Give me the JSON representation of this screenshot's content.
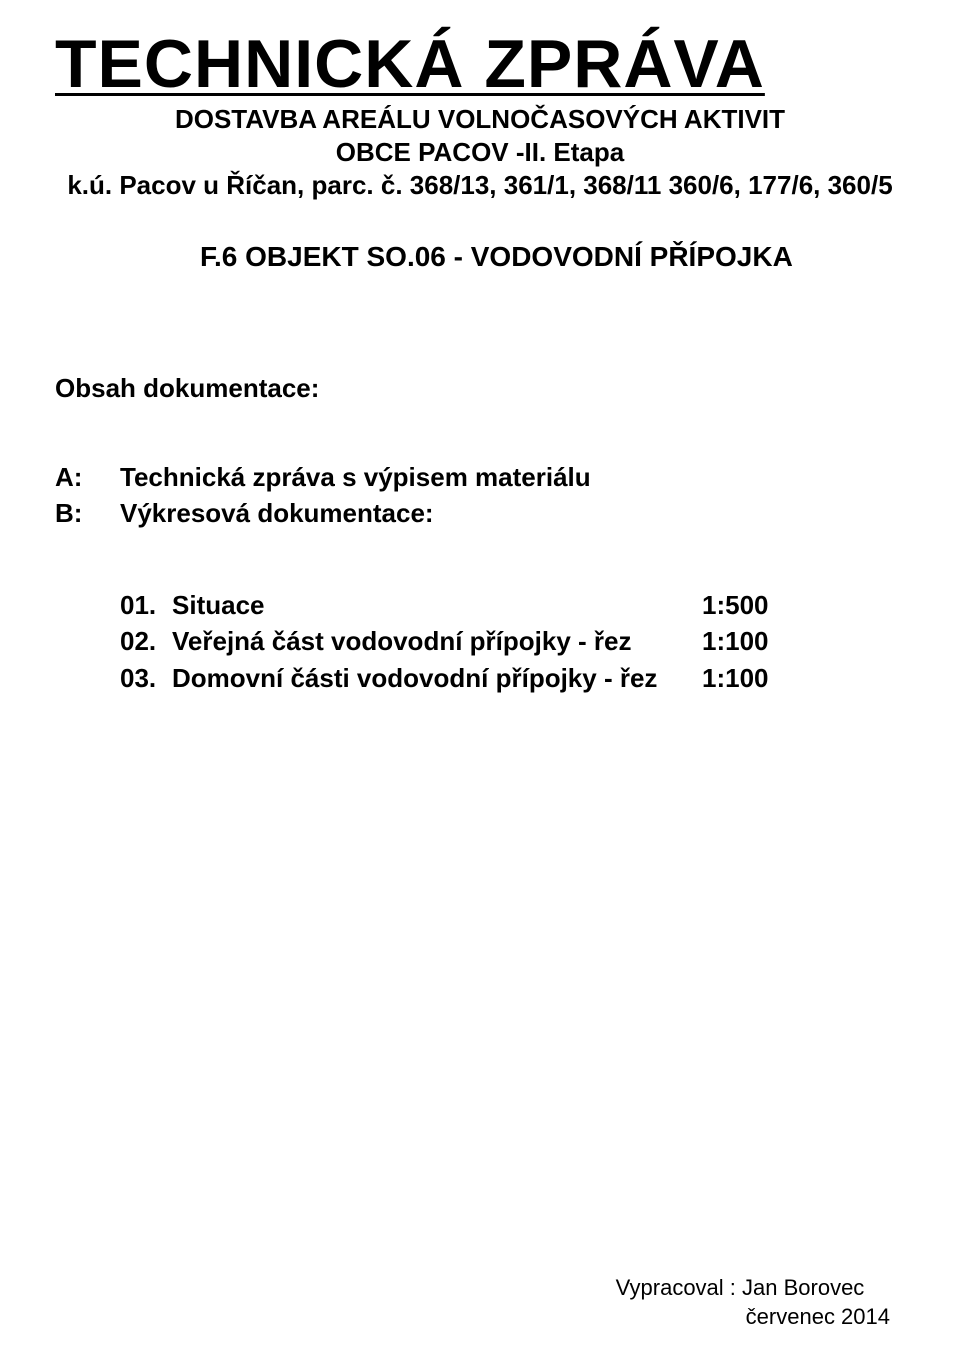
{
  "title": "TECHNICKÁ  ZPRÁVA",
  "subtitle1": "DOSTAVBA AREÁLU VOLNOČASOVÝCH AKTIVIT",
  "subtitle2": "OBCE PACOV -II. Etapa",
  "subtitle3": "k.ú. Pacov u Říčan, parc. č. 368/13, 361/1, 368/11 360/6, 177/6, 360/5",
  "section": "F.6 OBJEKT SO.06 - VODOVODNÍ PŘÍPOJKA",
  "obsah_label": "Obsah dokumentace:",
  "ab": [
    {
      "letter": "A:",
      "text": "Technická zpráva s výpisem materiálu"
    },
    {
      "letter": "B:",
      "text": "Výkresová dokumentace:"
    }
  ],
  "rows": [
    {
      "num": "01.",
      "desc": "Situace",
      "ratio": "1:500"
    },
    {
      "num": "02.",
      "desc": "Veřejná část vodovodní přípojky - řez",
      "ratio": "1:100"
    },
    {
      "num": "03.",
      "desc": "Domovní části vodovodní přípojky - řez",
      "ratio": "1:100"
    }
  ],
  "footer": {
    "author": "Vypracoval :  Jan Borovec",
    "date": "červenec 2014"
  }
}
